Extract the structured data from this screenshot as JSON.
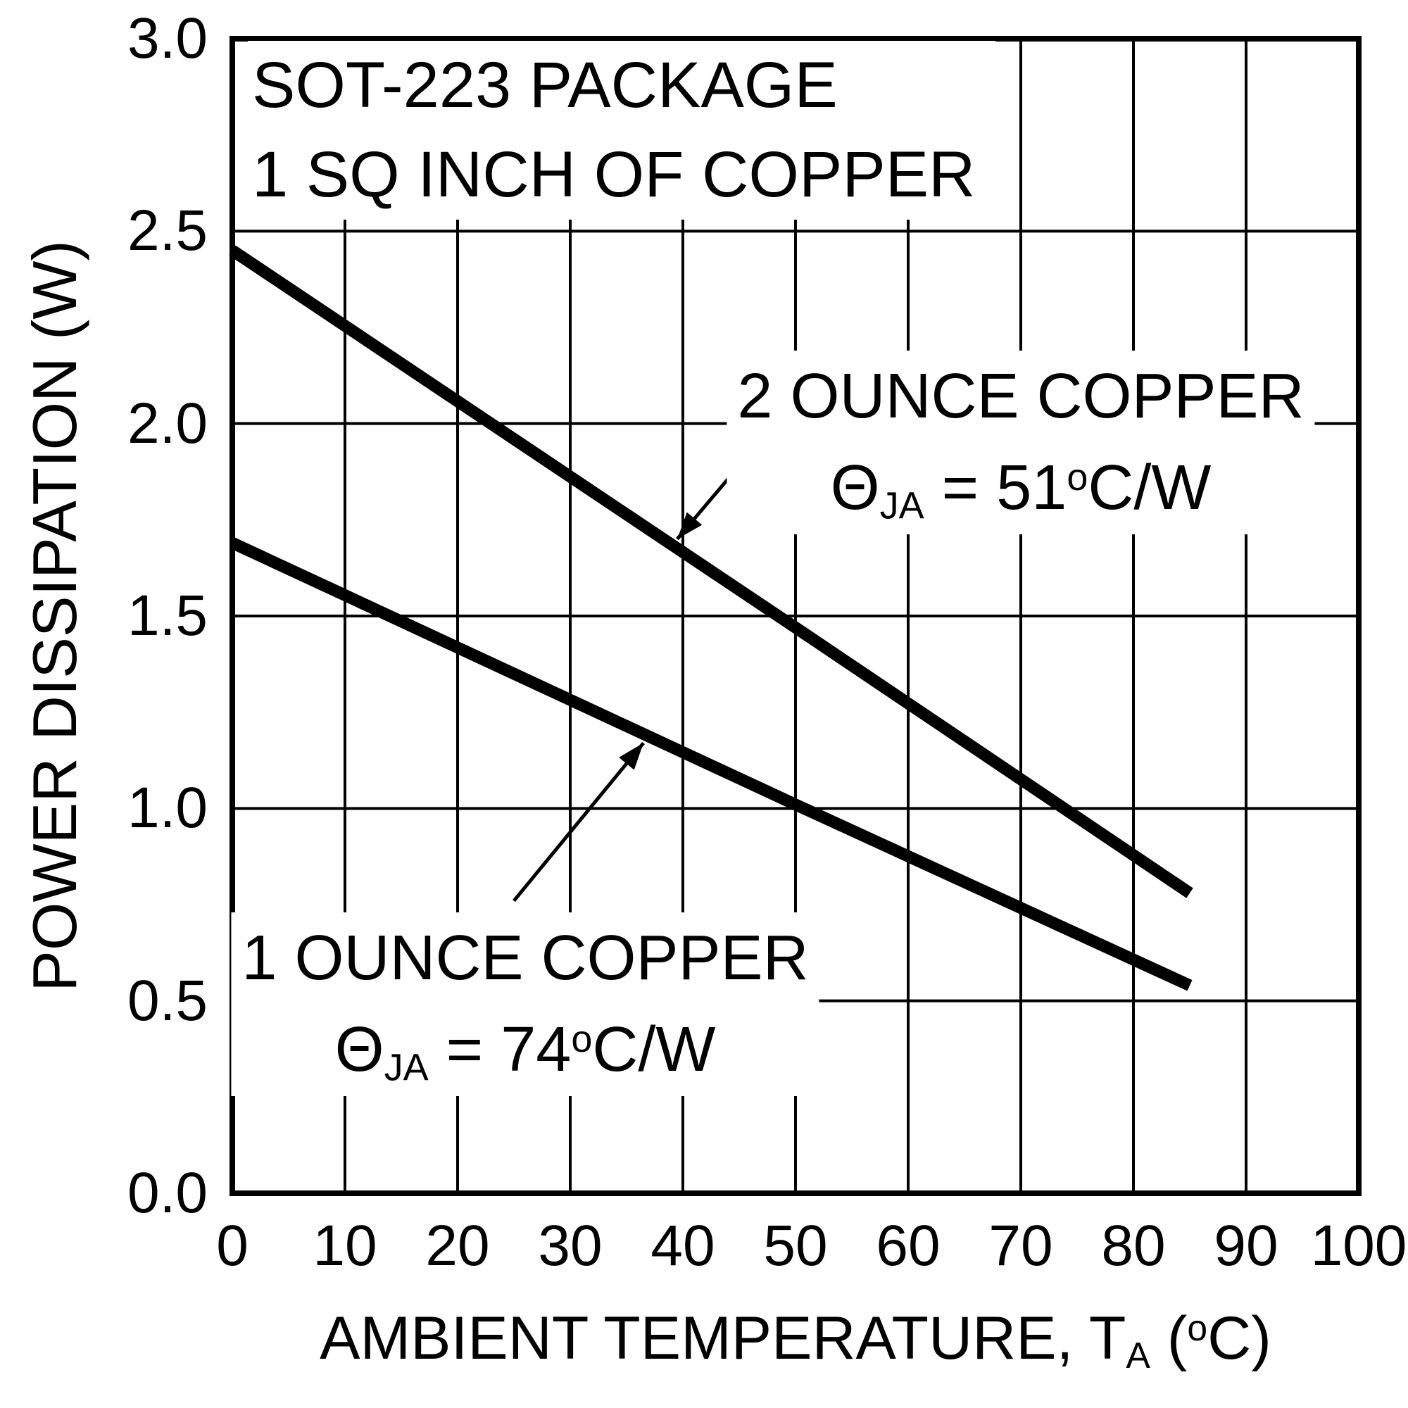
{
  "chart_data": {
    "type": "line",
    "title_lines": [
      "SOT-223 PACKAGE",
      "1 SQ INCH OF COPPER"
    ],
    "ylabel": "POWER DISSIPATION (W)",
    "xlabel": {
      "prefix": "AMBIENT TEMPERATURE, T",
      "sub": "A",
      "mid": " (",
      "sup": "o",
      "suffix": "C)"
    },
    "xlim": [
      0,
      100
    ],
    "ylim": [
      0.0,
      3.0
    ],
    "x_ticks": [
      0,
      10,
      20,
      30,
      40,
      50,
      60,
      70,
      80,
      90,
      100
    ],
    "y_ticks": [
      "0.0",
      "0.5",
      "1.0",
      "1.5",
      "2.0",
      "2.5",
      "3.0"
    ],
    "grid": true,
    "series": [
      {
        "name": "2 OUNCE COPPER",
        "theta": {
          "symbol": "Θ",
          "sub": "JA",
          "eq": " = 51",
          "sup": "o",
          "unit": "C/W"
        },
        "x": [
          0,
          25,
          50,
          85
        ],
        "y": [
          2.45,
          1.96,
          1.47,
          0.78
        ]
      },
      {
        "name": "1 OUNCE COPPER",
        "theta": {
          "symbol": "Θ",
          "sub": "JA",
          "eq": " = 74",
          "sup": "o",
          "unit": "C/W"
        },
        "x": [
          0,
          25,
          50,
          85
        ],
        "y": [
          1.69,
          1.35,
          1.01,
          0.54
        ]
      }
    ],
    "annotations": [
      {
        "series": 0,
        "text_x": 70,
        "text_y": 2.19,
        "arrow": {
          "x1": 47,
          "y1": 1.96,
          "x2": 39.5,
          "y2": 1.7
        }
      },
      {
        "series": 1,
        "text_x": 26,
        "text_y": 0.73,
        "arrow": {
          "x1": 25,
          "y1": 0.76,
          "x2": 36.5,
          "y2": 1.17
        }
      }
    ]
  },
  "colors": {
    "line": "#000000",
    "grid": "#000000",
    "axis": "#000000",
    "text": "#000000",
    "background": "#ffffff"
  }
}
